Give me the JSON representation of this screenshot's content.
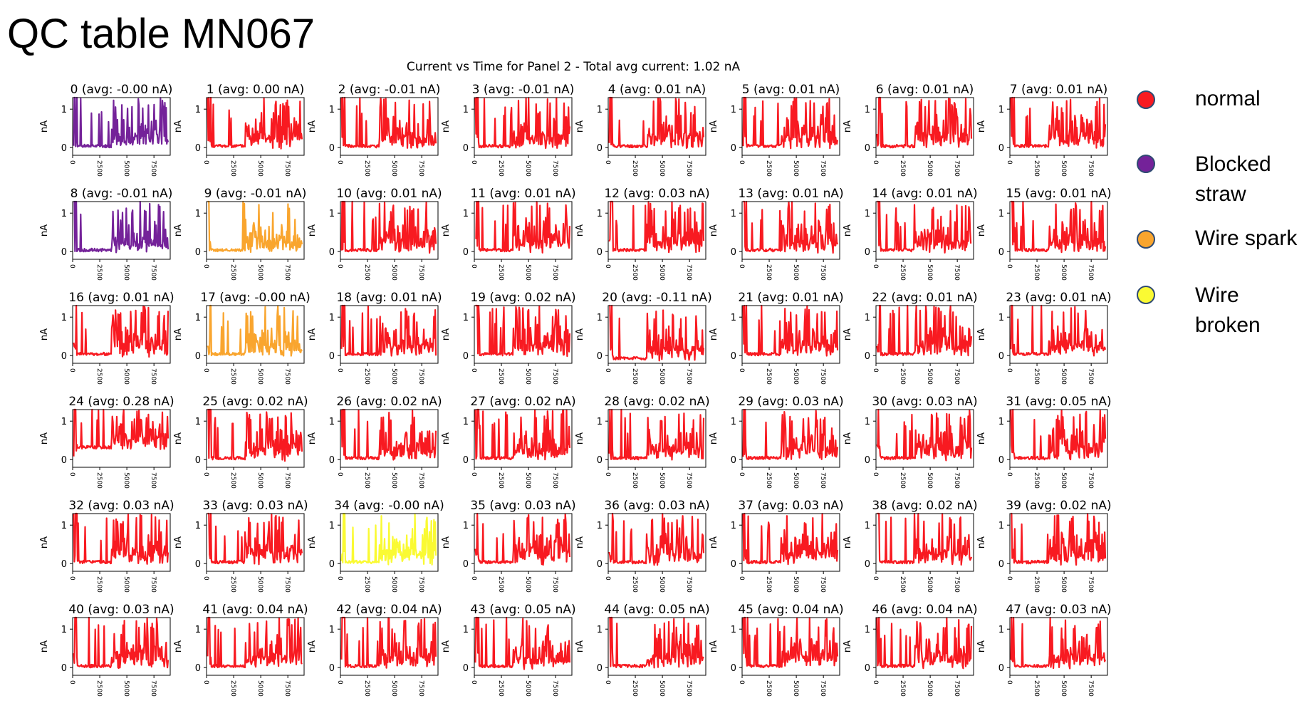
{
  "page_title": "QC table MN067",
  "chart_data": {
    "type": "line",
    "title": "Current vs Time for Panel 2 - Total avg current: 1.02 nA",
    "ylabel": "nA",
    "xlabel": "",
    "xlim": [
      0,
      9000
    ],
    "ylim": [
      -0.2,
      1.3
    ],
    "x_ticks": [
      "0",
      "2500",
      "5000",
      "7500"
    ],
    "y_ticks": [
      "0",
      "1"
    ],
    "legend": [
      {
        "key": "normal",
        "label": "normal",
        "color": "#f81a21"
      },
      {
        "key": "blocked",
        "label": "Blocked straw",
        "color": "#742299"
      },
      {
        "key": "spark",
        "label": "Wire spark",
        "color": "#f9a52e"
      },
      {
        "key": "broken",
        "label": "Wire broken",
        "color": "#fafa33"
      }
    ],
    "straws": [
      {
        "id": 0,
        "title": "0 (avg: -0.00 nA)",
        "avg": -0.0,
        "status": "blocked"
      },
      {
        "id": 1,
        "title": "1 (avg: 0.00 nA)",
        "avg": 0.0,
        "status": "normal"
      },
      {
        "id": 2,
        "title": "2 (avg: -0.01 nA)",
        "avg": -0.01,
        "status": "normal"
      },
      {
        "id": 3,
        "title": "3 (avg: -0.01 nA)",
        "avg": -0.01,
        "status": "normal"
      },
      {
        "id": 4,
        "title": "4 (avg: 0.01 nA)",
        "avg": 0.01,
        "status": "normal"
      },
      {
        "id": 5,
        "title": "5 (avg: 0.01 nA)",
        "avg": 0.01,
        "status": "normal"
      },
      {
        "id": 6,
        "title": "6 (avg: 0.01 nA)",
        "avg": 0.01,
        "status": "normal"
      },
      {
        "id": 7,
        "title": "7 (avg: 0.01 nA)",
        "avg": 0.01,
        "status": "normal"
      },
      {
        "id": 8,
        "title": "8 (avg: -0.01 nA)",
        "avg": -0.01,
        "status": "blocked"
      },
      {
        "id": 9,
        "title": "9 (avg: -0.01 nA)",
        "avg": -0.01,
        "status": "spark"
      },
      {
        "id": 10,
        "title": "10 (avg: 0.01 nA)",
        "avg": 0.01,
        "status": "normal"
      },
      {
        "id": 11,
        "title": "11 (avg: 0.01 nA)",
        "avg": 0.01,
        "status": "normal"
      },
      {
        "id": 12,
        "title": "12 (avg: 0.03 nA)",
        "avg": 0.03,
        "status": "normal"
      },
      {
        "id": 13,
        "title": "13 (avg: 0.01 nA)",
        "avg": 0.01,
        "status": "normal"
      },
      {
        "id": 14,
        "title": "14 (avg: 0.01 nA)",
        "avg": 0.01,
        "status": "normal"
      },
      {
        "id": 15,
        "title": "15 (avg: 0.01 nA)",
        "avg": 0.01,
        "status": "normal"
      },
      {
        "id": 16,
        "title": "16 (avg: 0.01 nA)",
        "avg": 0.01,
        "status": "normal"
      },
      {
        "id": 17,
        "title": "17 (avg: -0.00 nA)",
        "avg": -0.0,
        "status": "spark"
      },
      {
        "id": 18,
        "title": "18 (avg: 0.01 nA)",
        "avg": 0.01,
        "status": "normal"
      },
      {
        "id": 19,
        "title": "19 (avg: 0.02 nA)",
        "avg": 0.02,
        "status": "normal"
      },
      {
        "id": 20,
        "title": "20 (avg: -0.11 nA)",
        "avg": -0.11,
        "status": "normal"
      },
      {
        "id": 21,
        "title": "21 (avg: 0.01 nA)",
        "avg": 0.01,
        "status": "normal"
      },
      {
        "id": 22,
        "title": "22 (avg: 0.01 nA)",
        "avg": 0.01,
        "status": "normal"
      },
      {
        "id": 23,
        "title": "23 (avg: 0.01 nA)",
        "avg": 0.01,
        "status": "normal"
      },
      {
        "id": 24,
        "title": "24 (avg: 0.28 nA)",
        "avg": 0.28,
        "status": "normal"
      },
      {
        "id": 25,
        "title": "25 (avg: 0.02 nA)",
        "avg": 0.02,
        "status": "normal"
      },
      {
        "id": 26,
        "title": "26 (avg: 0.02 nA)",
        "avg": 0.02,
        "status": "normal"
      },
      {
        "id": 27,
        "title": "27 (avg: 0.02 nA)",
        "avg": 0.02,
        "status": "normal"
      },
      {
        "id": 28,
        "title": "28 (avg: 0.02 nA)",
        "avg": 0.02,
        "status": "normal"
      },
      {
        "id": 29,
        "title": "29 (avg: 0.03 nA)",
        "avg": 0.03,
        "status": "normal"
      },
      {
        "id": 30,
        "title": "30 (avg: 0.03 nA)",
        "avg": 0.03,
        "status": "normal"
      },
      {
        "id": 31,
        "title": "31 (avg: 0.05 nA)",
        "avg": 0.05,
        "status": "normal"
      },
      {
        "id": 32,
        "title": "32 (avg: 0.03 nA)",
        "avg": 0.03,
        "status": "normal"
      },
      {
        "id": 33,
        "title": "33 (avg: 0.03 nA)",
        "avg": 0.03,
        "status": "normal"
      },
      {
        "id": 34,
        "title": "34 (avg: -0.00 nA)",
        "avg": -0.0,
        "status": "broken"
      },
      {
        "id": 35,
        "title": "35 (avg: 0.03 nA)",
        "avg": 0.03,
        "status": "normal"
      },
      {
        "id": 36,
        "title": "36 (avg: 0.03 nA)",
        "avg": 0.03,
        "status": "normal"
      },
      {
        "id": 37,
        "title": "37 (avg: 0.03 nA)",
        "avg": 0.03,
        "status": "normal"
      },
      {
        "id": 38,
        "title": "38 (avg: 0.02 nA)",
        "avg": 0.02,
        "status": "normal"
      },
      {
        "id": 39,
        "title": "39 (avg: 0.02 nA)",
        "avg": 0.02,
        "status": "normal"
      },
      {
        "id": 40,
        "title": "40 (avg: 0.03 nA)",
        "avg": 0.03,
        "status": "normal"
      },
      {
        "id": 41,
        "title": "41 (avg: 0.04 nA)",
        "avg": 0.04,
        "status": "normal"
      },
      {
        "id": 42,
        "title": "42 (avg: 0.04 nA)",
        "avg": 0.04,
        "status": "normal"
      },
      {
        "id": 43,
        "title": "43 (avg: 0.05 nA)",
        "avg": 0.05,
        "status": "normal"
      },
      {
        "id": 44,
        "title": "44 (avg: 0.05 nA)",
        "avg": 0.05,
        "status": "normal"
      },
      {
        "id": 45,
        "title": "45 (avg: 0.04 nA)",
        "avg": 0.04,
        "status": "normal"
      },
      {
        "id": 46,
        "title": "46 (avg: 0.04 nA)",
        "avg": 0.04,
        "status": "normal"
      },
      {
        "id": 47,
        "title": "47 (avg: 0.03 nA)",
        "avg": 0.03,
        "status": "normal"
      }
    ]
  }
}
